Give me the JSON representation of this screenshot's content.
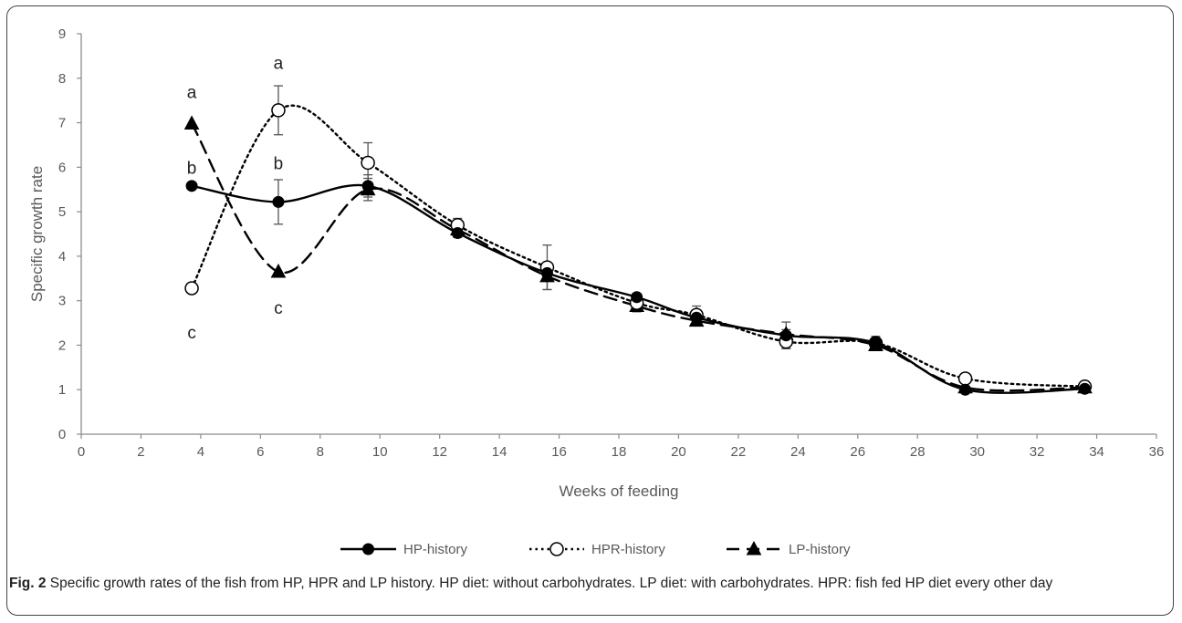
{
  "chart_data": {
    "type": "line",
    "xlabel": "Weeks of feeding",
    "ylabel": "Specific growth rate",
    "xlim": [
      0,
      36
    ],
    "ylim": [
      0,
      9
    ],
    "xticks": [
      0,
      2,
      4,
      6,
      8,
      10,
      12,
      14,
      16,
      18,
      20,
      22,
      24,
      26,
      28,
      30,
      32,
      34,
      36
    ],
    "yticks": [
      0,
      1,
      2,
      3,
      4,
      5,
      6,
      7,
      8,
      9
    ],
    "grid": false,
    "legend_position": "bottom",
    "series": [
      {
        "name": "HP-history",
        "line_style": "solid",
        "marker": "filled-circle",
        "x": [
          3.7,
          6.6,
          9.6,
          12.6,
          15.6,
          18.6,
          20.6,
          23.6,
          26.6,
          29.6,
          33.6
        ],
        "y": [
          5.58,
          5.22,
          5.58,
          4.52,
          3.62,
          3.08,
          2.62,
          2.22,
          2.05,
          1.0,
          1.02
        ],
        "err": [
          0.05,
          0.5,
          0.25,
          0.1,
          0.1,
          0.08,
          0.1,
          0.3,
          0.15,
          0.05,
          0.05
        ]
      },
      {
        "name": "HPR-history",
        "line_style": "dotted",
        "marker": "open-circle",
        "x": [
          3.7,
          6.6,
          9.6,
          12.6,
          15.6,
          18.6,
          20.6,
          23.6,
          26.6,
          29.6,
          33.6
        ],
        "y": [
          3.28,
          7.28,
          6.1,
          4.7,
          3.75,
          2.95,
          2.68,
          2.08,
          2.05,
          1.25,
          1.07
        ],
        "err": [
          0.1,
          0.55,
          0.45,
          0.15,
          0.5,
          0.2,
          0.2,
          0.15,
          0.1,
          0.05,
          0.05
        ]
      },
      {
        "name": "LP-history",
        "line_style": "dashed",
        "marker": "filled-triangle",
        "x": [
          3.7,
          6.6,
          9.6,
          12.6,
          15.6,
          18.6,
          20.6,
          23.6,
          26.6,
          29.6,
          33.6
        ],
        "y": [
          6.98,
          3.65,
          5.5,
          4.6,
          3.55,
          2.88,
          2.55,
          2.25,
          2.0,
          1.05,
          1.05
        ],
        "err": [
          0.05,
          0.05,
          0.25,
          0.1,
          0.3,
          0.1,
          0.1,
          0.1,
          0.1,
          0.05,
          0.05
        ]
      }
    ],
    "annotations": [
      {
        "text": "a",
        "x": 3.7,
        "y": 7.7
      },
      {
        "text": "b",
        "x": 3.7,
        "y": 6.0
      },
      {
        "text": "c",
        "x": 3.7,
        "y": 2.3
      },
      {
        "text": "a",
        "x": 6.6,
        "y": 8.35
      },
      {
        "text": "b",
        "x": 6.6,
        "y": 6.1
      },
      {
        "text": "c",
        "x": 6.6,
        "y": 2.85
      }
    ]
  },
  "caption": {
    "label": "Fig. 2",
    "text": " Specific growth rates of the fish from HP, HPR and LP history. HP diet: without carbohydrates. LP diet: with carbohydrates. HPR: fish fed HP diet every other day"
  },
  "colors": {
    "series": "#000000",
    "axis": "#8c8c8c",
    "tick_text": "#595959",
    "frame": "#444444"
  }
}
